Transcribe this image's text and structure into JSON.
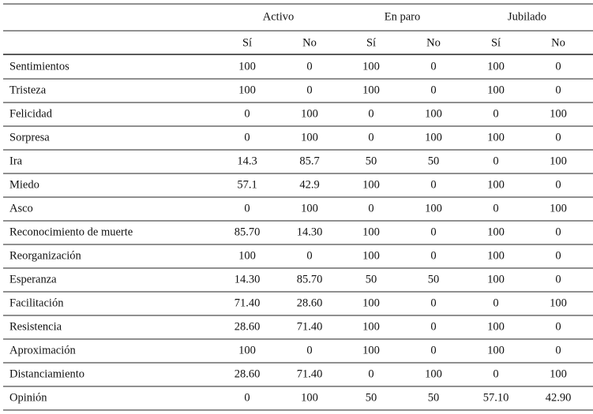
{
  "header": {
    "groups": [
      "Activo",
      "En paro",
      "Jubilado"
    ],
    "subheaders": [
      "Sí",
      "No",
      "Sí",
      "No",
      "Sí",
      "No"
    ]
  },
  "table": {
    "rows": [
      {
        "label": "Sentimientos",
        "values": [
          "100",
          "0",
          "100",
          "0",
          "100",
          "0"
        ]
      },
      {
        "label": "Tristeza",
        "values": [
          "100",
          "0",
          "100",
          "0",
          "100",
          "0"
        ]
      },
      {
        "label": "Felicidad",
        "values": [
          "0",
          "100",
          "0",
          "100",
          "0",
          "100"
        ]
      },
      {
        "label": "Sorpresa",
        "values": [
          "0",
          "100",
          "0",
          "100",
          "100",
          "0"
        ]
      },
      {
        "label": "Ira",
        "values": [
          "14.3",
          "85.7",
          "50",
          "50",
          "0",
          "100"
        ]
      },
      {
        "label": "Miedo",
        "values": [
          "57.1",
          "42.9",
          "100",
          "0",
          "100",
          "0"
        ]
      },
      {
        "label": "Asco",
        "values": [
          "0",
          "100",
          "0",
          "100",
          "0",
          "100"
        ]
      },
      {
        "label": "Reconocimiento de muerte",
        "values": [
          "85.70",
          "14.30",
          "100",
          "0",
          "100",
          "0"
        ]
      },
      {
        "label": "Reorganización",
        "values": [
          "100",
          "0",
          "100",
          "0",
          "100",
          "0"
        ]
      },
      {
        "label": "Esperanza",
        "values": [
          "14.30",
          "85.70",
          "50",
          "50",
          "100",
          "0"
        ]
      },
      {
        "label": "Facilitación",
        "values": [
          "71.40",
          "28.60",
          "100",
          "0",
          "0",
          "100"
        ]
      },
      {
        "label": "Resistencia",
        "values": [
          "28.60",
          "71.40",
          "100",
          "0",
          "100",
          "0"
        ]
      },
      {
        "label": "Aproximación",
        "values": [
          "100",
          "0",
          "100",
          "0",
          "100",
          "0"
        ]
      },
      {
        "label": "Distanciamiento",
        "values": [
          "28.60",
          "71.40",
          "0",
          "100",
          "0",
          "100"
        ]
      },
      {
        "label": "Opinión",
        "values": [
          "0",
          "100",
          "50",
          "50",
          "57.10",
          "42.90"
        ]
      }
    ]
  }
}
